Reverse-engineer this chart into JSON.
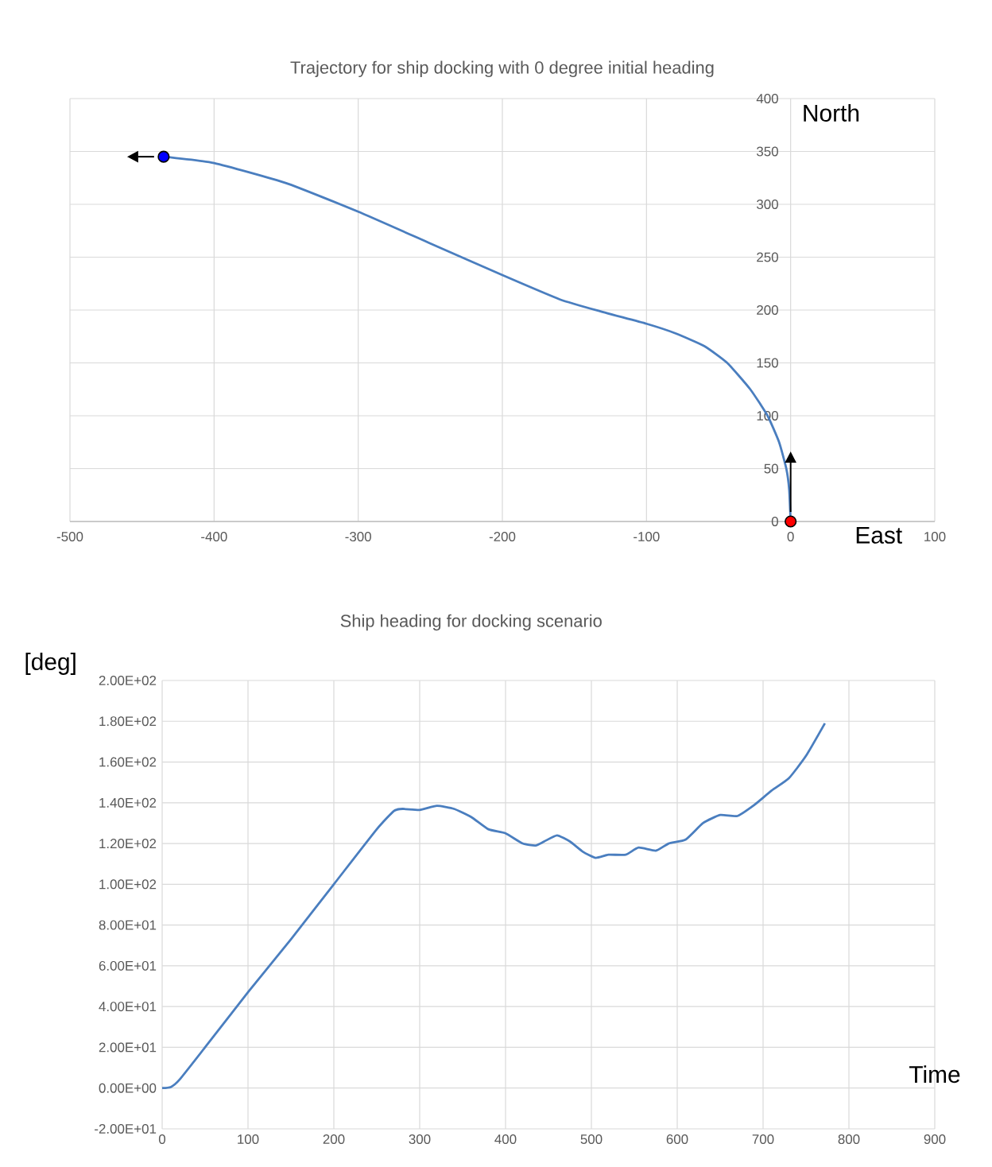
{
  "chart_data": [
    {
      "type": "line",
      "title": "Trajectory for ship docking with 0 degree initial heading",
      "xlabel": "East",
      "ylabel": "North",
      "xlim": [
        -500,
        100
      ],
      "ylim": [
        0,
        400
      ],
      "xticks": [
        -500,
        -400,
        -300,
        -200,
        -100,
        0,
        100
      ],
      "yticks": [
        0,
        50,
        100,
        150,
        200,
        250,
        300,
        350,
        400
      ],
      "grid": true,
      "series": [
        {
          "type": "line",
          "color": "#4a7ebf",
          "marker": "none",
          "line_style": "solid",
          "x": [
            0,
            -1,
            -3,
            -8,
            -16,
            -28,
            -44,
            -60,
            -80,
            -100,
            -130,
            -160,
            -200,
            -250,
            -300,
            -350,
            -400,
            -435
          ],
          "values": [
            0,
            30,
            50,
            75,
            100,
            125,
            150,
            166,
            178,
            187,
            198,
            210,
            233,
            263,
            293,
            320,
            339,
            345
          ]
        },
        {
          "type": "scatter",
          "color": "#0000ff",
          "marker": "circle",
          "x": [
            -435
          ],
          "values": [
            345
          ]
        },
        {
          "type": "scatter",
          "color": "#ff0000",
          "marker": "circle",
          "x": [
            0
          ],
          "values": [
            0
          ]
        }
      ]
    },
    {
      "type": "line",
      "title": "Ship heading for docking scenario",
      "xlabel": "Time",
      "ylabel": "[deg]",
      "xlim": [
        0,
        900
      ],
      "ylim": [
        -20,
        200
      ],
      "xticks": [
        0,
        100,
        200,
        300,
        400,
        500,
        600,
        700,
        800,
        900
      ],
      "yticks": [
        {
          "value": -20,
          "label": "-2.00E+01"
        },
        {
          "value": 0,
          "label": "0.00E+00"
        },
        {
          "value": 20,
          "label": "2.00E+01"
        },
        {
          "value": 40,
          "label": "4.00E+01"
        },
        {
          "value": 60,
          "label": "6.00E+01"
        },
        {
          "value": 80,
          "label": "8.00E+01"
        },
        {
          "value": 100,
          "label": "1.00E+02"
        },
        {
          "value": 120,
          "label": "1.20E+02"
        },
        {
          "value": 140,
          "label": "1.40E+02"
        },
        {
          "value": 160,
          "label": "1.60E+02"
        },
        {
          "value": 180,
          "label": "1.80E+02"
        },
        {
          "value": 200,
          "label": "2.00E+02"
        }
      ],
      "grid": true,
      "marker": "none",
      "line_style": "solid",
      "series": [
        {
          "color": "#4a7ebf",
          "x": [
            0,
            10,
            20,
            50,
            100,
            150,
            200,
            250,
            270,
            280,
            300,
            320,
            340,
            360,
            380,
            400,
            420,
            435,
            445,
            460,
            475,
            490,
            505,
            520,
            540,
            555,
            575,
            590,
            610,
            630,
            650,
            670,
            690,
            710,
            730,
            750,
            772
          ],
          "values": [
            0,
            0.5,
            4,
            20,
            47,
            73,
            100,
            127,
            136,
            137,
            136.5,
            138.5,
            137,
            133,
            127,
            125,
            120,
            119,
            121,
            124,
            121,
            116,
            113,
            114.5,
            114.5,
            118,
            116.5,
            120,
            122,
            130,
            134,
            133.5,
            139,
            146,
            152,
            163,
            179
          ]
        }
      ]
    }
  ]
}
